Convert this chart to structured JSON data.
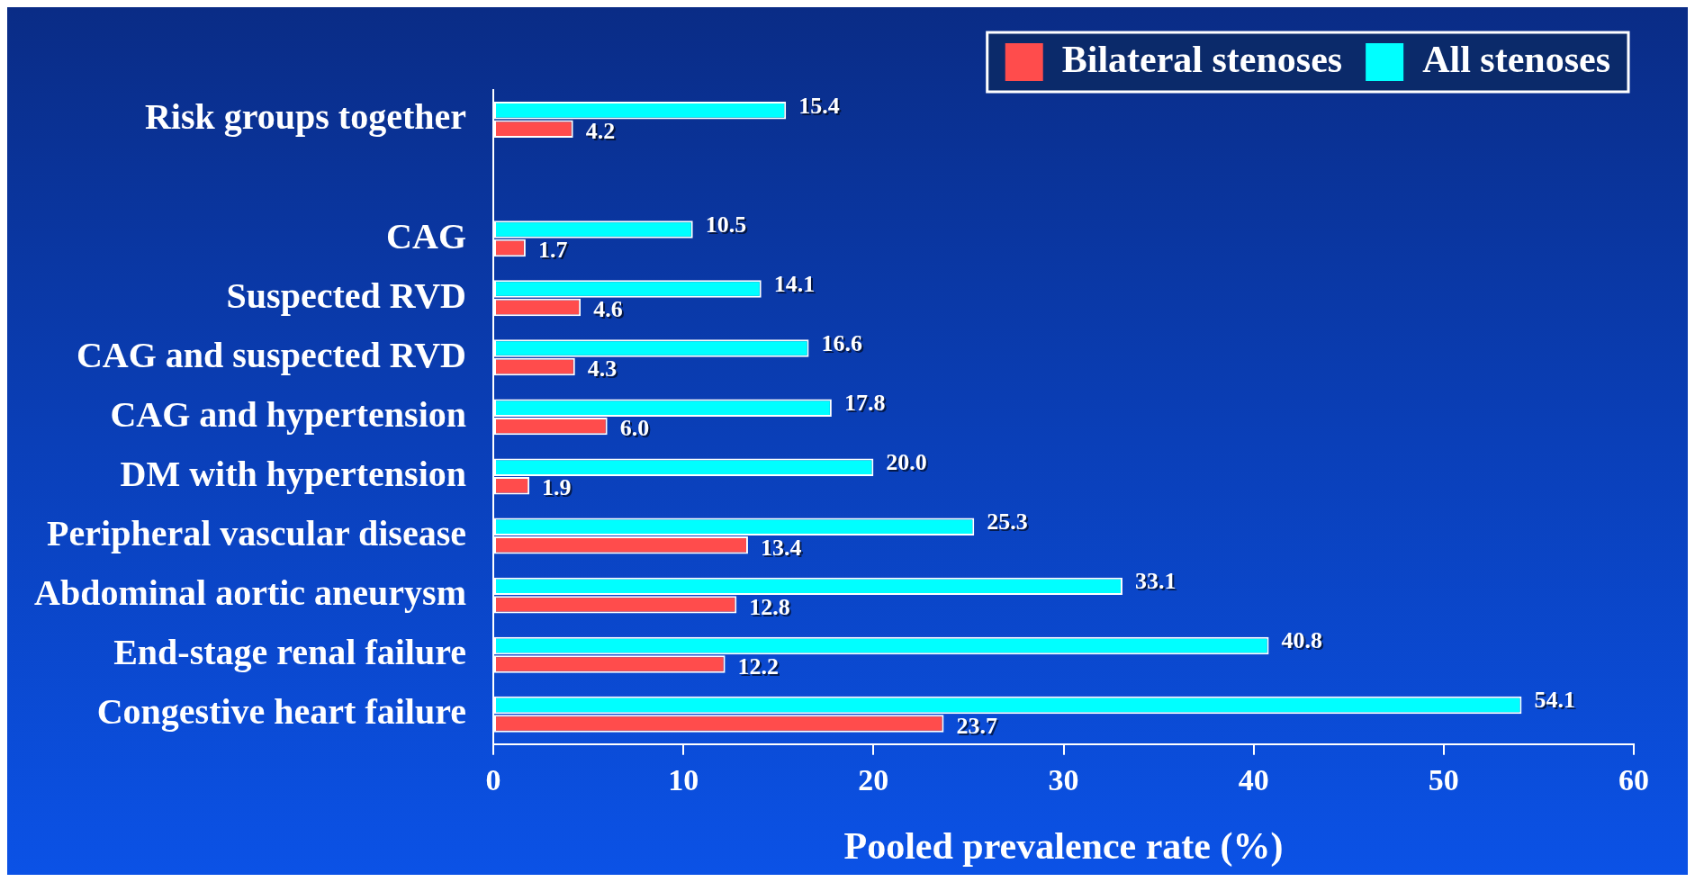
{
  "chart_data": {
    "type": "bar",
    "orientation": "horizontal",
    "xlabel": "Pooled prevalence rate (%)",
    "categories": [
      "Risk groups together",
      null,
      "CAG",
      "Suspected RVD",
      "CAG and suspected RVD",
      "CAG and hypertension",
      "DM with hypertension",
      "Peripheral vascular disease",
      "Abdominal aortic aneurysm",
      "End-stage renal failure",
      "Congestive heart failure"
    ],
    "series": [
      {
        "name": "All stenoses",
        "color": "#00ffff",
        "values": [
          15.4,
          null,
          10.5,
          14.1,
          16.6,
          17.8,
          20.0,
          25.3,
          33.1,
          40.8,
          54.1
        ],
        "value_labels": [
          "15.4",
          null,
          "10.5",
          "14.1",
          "16.6",
          "17.8",
          "20.0",
          "25.3",
          "33.1",
          "40.8",
          "54.1"
        ]
      },
      {
        "name": "Bilateral stenoses",
        "color": "#ff4c4c",
        "values": [
          4.2,
          null,
          1.7,
          4.6,
          4.3,
          6.0,
          1.9,
          13.4,
          12.8,
          12.2,
          23.7
        ],
        "value_labels": [
          "4.2",
          null,
          "1.7",
          "4.6",
          "4.3",
          "6.0",
          "1.9",
          "13.4",
          "12.8",
          "12.2",
          "23.7"
        ]
      }
    ],
    "xlim": [
      0,
      60
    ],
    "xticks": [
      0,
      10,
      20,
      30,
      40,
      50,
      60
    ],
    "grid": false,
    "legend": "top right"
  }
}
